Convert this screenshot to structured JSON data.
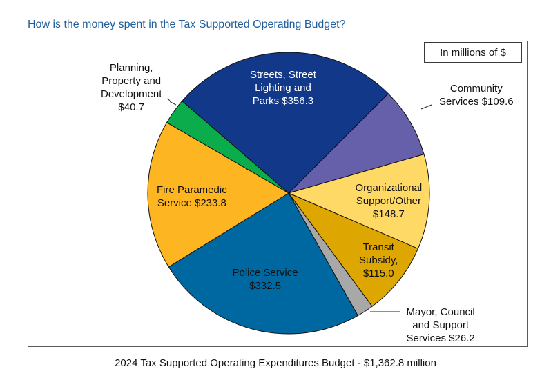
{
  "title": "How is the money spent in the Tax Supported Operating Budget?",
  "units_note": "In millions of $",
  "footer": "2024 Tax Supported Operating Expenditures Budget - $1,362.8 million",
  "chart_data": {
    "type": "pie",
    "title": "How is the money spent in the Tax Supported Operating Budget?",
    "units": "In millions of $",
    "total_label": "$1,362.8 million",
    "start_angle_deg": -45,
    "direction": "clockwise",
    "slices": [
      {
        "name": "Community Services",
        "value": 109.6,
        "color": "#6660aa",
        "label_lines": [
          "Community",
          "Services $109.6"
        ],
        "label_value": "$109.6",
        "label_color": "#111111"
      },
      {
        "name": "Organizational Support/Other",
        "value": 148.7,
        "color": "#fed966",
        "label_lines": [
          "Organizational",
          "Support/Other",
          "$148.7"
        ],
        "label_value": "$148.7",
        "label_color": "#111111"
      },
      {
        "name": "Transit Subsidy",
        "value": 115.0,
        "color": "#dea600",
        "label_lines": [
          "Transit",
          "Subsidy,",
          "$115.0"
        ],
        "label_value": "$115.0",
        "label_color": "#111111"
      },
      {
        "name": "Mayor, Council and Support Services",
        "value": 26.2,
        "color": "#a8a8a8",
        "label_lines": [
          "Mayor, Council",
          "and Support",
          "Services $26.2"
        ],
        "label_value": "$26.2",
        "label_color": "#111111"
      },
      {
        "name": "Police Service",
        "value": 332.5,
        "color": "#0068a0",
        "label_lines": [
          "Police Service",
          "$332.5"
        ],
        "label_value": "$332.5",
        "label_color": "#111111"
      },
      {
        "name": "Fire Paramedic Service",
        "value": 233.8,
        "color": "#fdb621",
        "label_lines": [
          "Fire Paramedic",
          "Service $233.8"
        ],
        "label_value": "$233.8",
        "label_color": "#111111"
      },
      {
        "name": "Planning, Property and Development",
        "value": 40.7,
        "color": "#0aac4c",
        "label_lines": [
          "Planning,",
          "Property and",
          "Development",
          "$40.7"
        ],
        "label_value": "$40.7",
        "label_color": "#111111"
      },
      {
        "name": "Streets, Street Lighting and Parks",
        "value": 356.3,
        "color": "#12388a",
        "label_lines": [
          "Streets, Street",
          "Lighting and",
          "Parks $356.3"
        ],
        "label_value": "$356.3",
        "label_color": "#ffffff"
      }
    ]
  }
}
